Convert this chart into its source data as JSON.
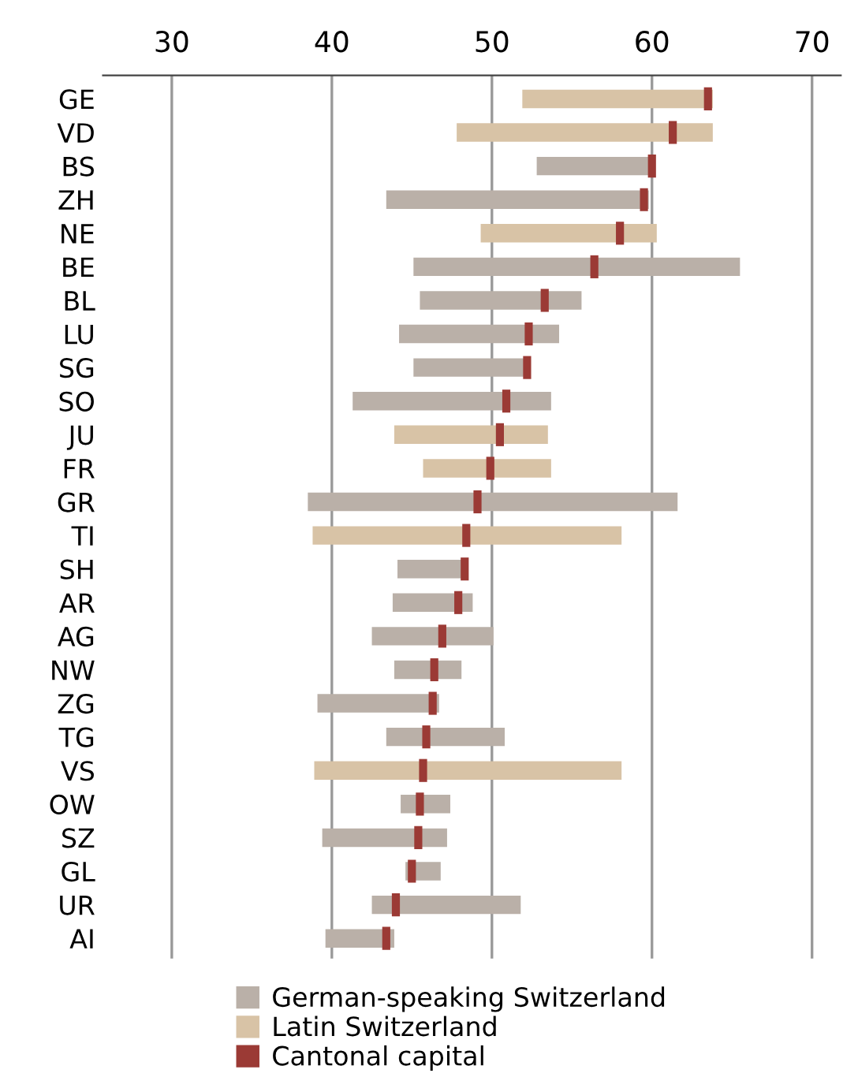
{
  "chart_data": {
    "type": "bar",
    "orientation": "horizontal",
    "categories": [
      "GE",
      "VD",
      "BS",
      "ZH",
      "NE",
      "BE",
      "BL",
      "LU",
      "SG",
      "SO",
      "JU",
      "FR",
      "GR",
      "TI",
      "SH",
      "AR",
      "AG",
      "NW",
      "ZG",
      "TG",
      "VS",
      "OW",
      "SZ",
      "GL",
      "UR",
      "AI"
    ],
    "series": [
      {
        "name": "German-speaking Switzerland",
        "color": "#bab0a8",
        "base": [
          null,
          null,
          52.8,
          43.4,
          null,
          45.1,
          45.5,
          44.2,
          45.1,
          41.3,
          null,
          null,
          38.5,
          null,
          44.1,
          43.8,
          42.5,
          43.9,
          39.1,
          43.4,
          null,
          44.3,
          39.4,
          44.6,
          42.5,
          39.6
        ],
        "values": [
          null,
          null,
          7.0,
          16.4,
          null,
          20.4,
          10.1,
          10.0,
          7.1,
          12.4,
          null,
          null,
          23.1,
          null,
          4.2,
          5.0,
          7.6,
          4.2,
          7.6,
          7.4,
          null,
          3.1,
          7.8,
          2.2,
          9.3,
          4.3
        ]
      },
      {
        "name": "Latin Switzerland",
        "color": "#d8c3a6",
        "base": [
          51.9,
          47.8,
          null,
          null,
          49.3,
          null,
          null,
          null,
          null,
          null,
          43.9,
          45.7,
          null,
          38.8,
          null,
          null,
          null,
          null,
          null,
          null,
          38.9,
          null,
          null,
          null,
          null,
          null
        ],
        "values": [
          11.9,
          16.0,
          null,
          null,
          11.0,
          null,
          null,
          null,
          null,
          null,
          9.6,
          8.0,
          null,
          19.3,
          null,
          null,
          null,
          null,
          null,
          null,
          19.2,
          null,
          null,
          null,
          null,
          null
        ]
      },
      {
        "name": "Cantonal capital",
        "type": "scatter",
        "marker": "square",
        "color": "#9b3a35",
        "values": [
          63.5,
          61.3,
          60.0,
          59.5,
          58.0,
          56.4,
          53.3,
          52.3,
          52.2,
          50.9,
          50.5,
          49.9,
          49.1,
          48.4,
          48.3,
          47.9,
          46.9,
          46.4,
          46.3,
          45.9,
          45.7,
          45.5,
          45.4,
          45.0,
          44.0,
          43.4
        ]
      }
    ],
    "xlim": [
      25.7,
      71.8
    ],
    "xticks": [
      30,
      40,
      50,
      60,
      70
    ],
    "grid": "x",
    "legend": "bottom"
  }
}
